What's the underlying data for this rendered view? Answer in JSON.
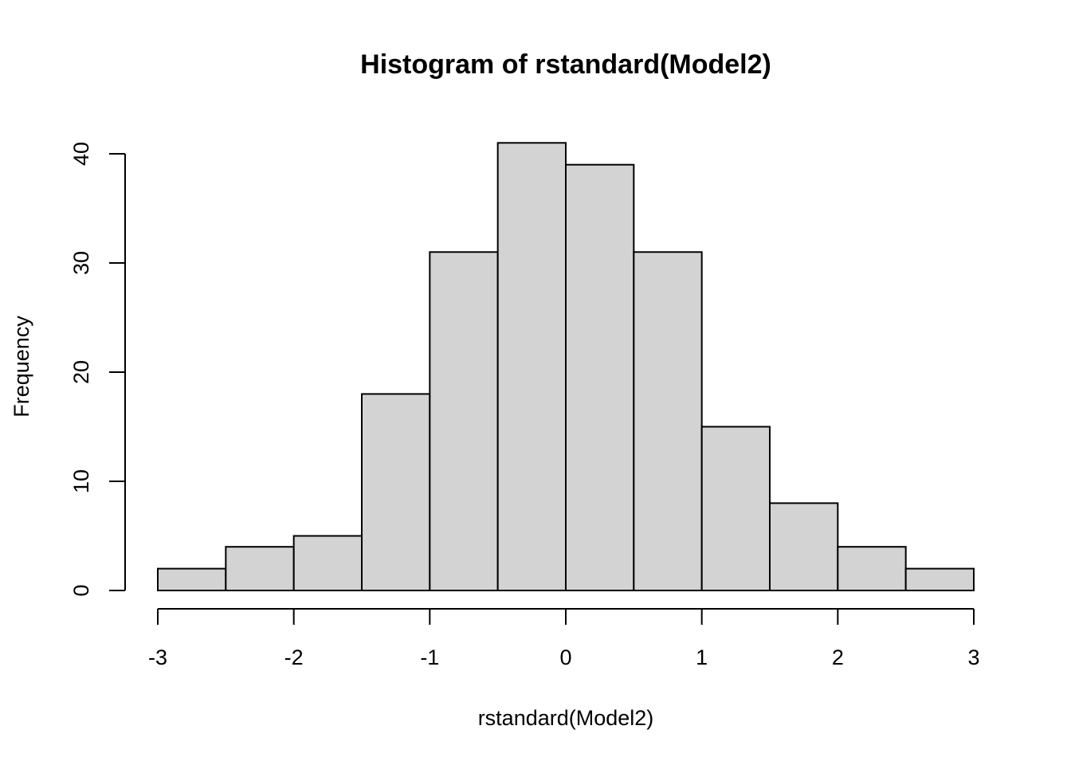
{
  "chart_data": {
    "type": "bar",
    "title": "Histogram of rstandard(Model2)",
    "xlabel": "rstandard(Model2)",
    "ylabel": "Frequency",
    "bins": [
      {
        "x0": -3.0,
        "x1": -2.5,
        "count": 2
      },
      {
        "x0": -2.5,
        "x1": -2.0,
        "count": 4
      },
      {
        "x0": -2.0,
        "x1": -1.5,
        "count": 5
      },
      {
        "x0": -1.5,
        "x1": -1.0,
        "count": 18
      },
      {
        "x0": -1.0,
        "x1": -0.5,
        "count": 31
      },
      {
        "x0": -0.5,
        "x1": 0.0,
        "count": 41
      },
      {
        "x0": 0.0,
        "x1": 0.5,
        "count": 39
      },
      {
        "x0": 0.5,
        "x1": 1.0,
        "count": 31
      },
      {
        "x0": 1.0,
        "x1": 1.5,
        "count": 15
      },
      {
        "x0": 1.5,
        "x1": 2.0,
        "count": 8
      },
      {
        "x0": 2.0,
        "x1": 2.5,
        "count": 4
      },
      {
        "x0": 2.5,
        "x1": 3.0,
        "count": 2
      }
    ],
    "xlim": [
      -3,
      3
    ],
    "ylim": [
      0,
      40
    ],
    "xticks": [
      -3,
      -2,
      -1,
      0,
      1,
      2,
      3
    ],
    "yticks": [
      0,
      10,
      20,
      30,
      40
    ],
    "grid": false,
    "colors": {
      "bar_fill": "#d3d3d3",
      "bar_stroke": "#000000"
    }
  }
}
